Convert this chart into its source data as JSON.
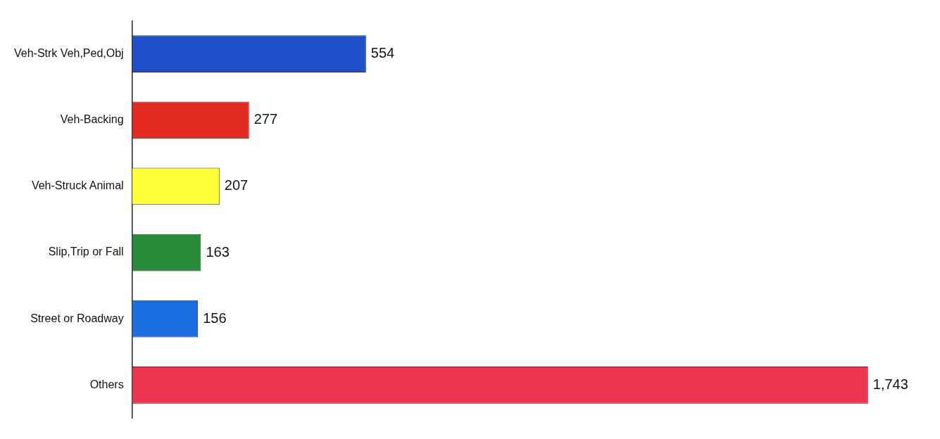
{
  "chart_data": {
    "type": "bar",
    "orientation": "horizontal",
    "categories": [
      "Veh-Strk Veh,Ped,Obj",
      "Veh-Backing",
      "Veh-Struck Animal",
      "Slip,Trip or Fall",
      "Street or Roadway",
      "Others"
    ],
    "values": [
      554,
      277,
      207,
      163,
      156,
      1743
    ],
    "colors": [
      "#1f4fc8",
      "#e02a22",
      "#ffff3a",
      "#2a8a3c",
      "#1a6ee0",
      "#ec3550"
    ],
    "value_labels": [
      "554",
      "277",
      "207",
      "163",
      "156",
      "1,743"
    ],
    "legend": false
  }
}
